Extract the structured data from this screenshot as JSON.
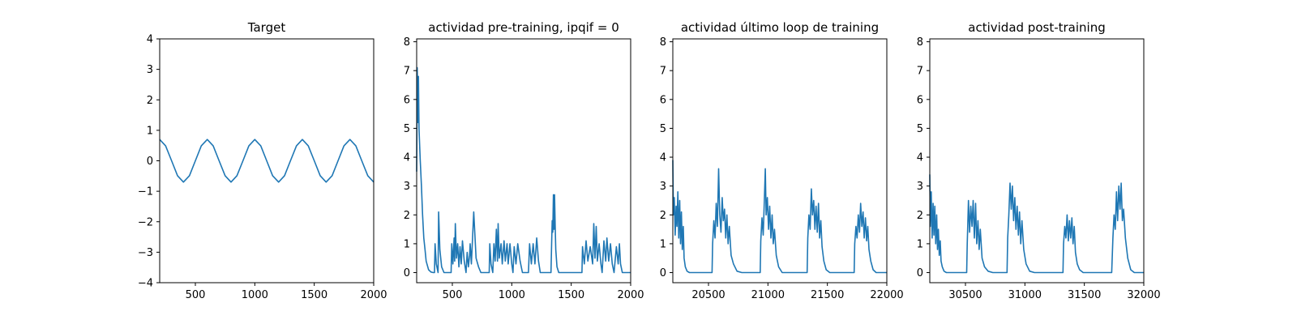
{
  "series_color": "#1f77b4",
  "chart_data": [
    {
      "type": "line",
      "title": "Target",
      "xlabel": "",
      "ylabel": "",
      "xlim": [
        200,
        2000
      ],
      "ylim": [
        -4,
        4
      ],
      "xticks": [
        500,
        1000,
        1500,
        2000
      ],
      "yticks": [
        -4,
        -3,
        -2,
        -1,
        0,
        1,
        2,
        3,
        4
      ],
      "xtick_labels": [
        "500",
        "1000",
        "1500",
        "2000"
      ],
      "ytick_labels": [
        "−4",
        "−3",
        "−2",
        "−1",
        "0",
        "1",
        "2",
        "3",
        "4"
      ],
      "grid": false,
      "x": [
        200,
        250,
        300,
        350,
        400,
        450,
        500,
        550,
        600,
        650,
        700,
        750,
        800,
        850,
        900,
        950,
        1000,
        1050,
        1100,
        1150,
        1200,
        1250,
        1300,
        1350,
        1400,
        1450,
        1500,
        1550,
        1600,
        1650,
        1700,
        1750,
        1800,
        1850,
        1900,
        1950,
        2000
      ],
      "y": [
        0.7,
        0.49,
        0.0,
        -0.49,
        -0.7,
        -0.49,
        0.0,
        0.49,
        0.7,
        0.49,
        0.0,
        -0.49,
        -0.7,
        -0.49,
        0.0,
        0.49,
        0.7,
        0.49,
        0.0,
        -0.49,
        -0.7,
        -0.49,
        0.0,
        0.49,
        0.7,
        0.49,
        0.0,
        -0.49,
        -0.7,
        -0.49,
        0.0,
        0.49,
        0.7,
        0.49,
        0.0,
        -0.49,
        -0.7
      ]
    },
    {
      "type": "line",
      "title": "actividad pre-training, ipqif = 0",
      "xlabel": "",
      "ylabel": "",
      "xlim": [
        200,
        2000
      ],
      "ylim": [
        -0.35,
        8.1
      ],
      "xticks": [
        500,
        1000,
        1500,
        2000
      ],
      "yticks": [
        0,
        1,
        2,
        3,
        4,
        5,
        6,
        7,
        8
      ],
      "xtick_labels": [
        "500",
        "1000",
        "1500",
        "2000"
      ],
      "ytick_labels": [
        "0",
        "1",
        "2",
        "3",
        "4",
        "5",
        "6",
        "7",
        "8"
      ],
      "grid": false,
      "x": [
        200,
        205,
        210,
        215,
        220,
        225,
        230,
        240,
        250,
        260,
        270,
        280,
        300,
        320,
        340,
        350,
        355,
        365,
        380,
        385,
        395,
        410,
        430,
        450,
        470,
        480,
        490,
        495,
        505,
        515,
        520,
        525,
        535,
        545,
        555,
        565,
        575,
        585,
        600,
        615,
        625,
        635,
        645,
        650,
        660,
        680,
        700,
        720,
        740,
        760,
        790,
        810,
        815,
        825,
        840,
        850,
        860,
        870,
        880,
        885,
        895,
        910,
        920,
        935,
        945,
        960,
        970,
        985,
        1000,
        1010,
        1020,
        1035,
        1050,
        1070,
        1090,
        1110,
        1130,
        1140,
        1150,
        1165,
        1180,
        1195,
        1210,
        1225,
        1240,
        1255,
        1270,
        1290,
        1310,
        1330,
        1335,
        1340,
        1345,
        1350,
        1355,
        1360,
        1365,
        1370,
        1380,
        1395,
        1420,
        1450,
        1480,
        1510,
        1540,
        1570,
        1590,
        1595,
        1610,
        1625,
        1640,
        1660,
        1680,
        1690,
        1700,
        1710,
        1720,
        1735,
        1750,
        1760,
        1775,
        1790,
        1800,
        1815,
        1830,
        1845,
        1860,
        1880,
        1895,
        1905,
        1915,
        1930,
        1950,
        1970,
        1990,
        2000
      ],
      "y": [
        3.5,
        7.1,
        5.2,
        6.8,
        5.0,
        4.4,
        3.9,
        3.0,
        2.0,
        1.2,
        0.8,
        0.4,
        0.1,
        0.02,
        0.0,
        0.0,
        1.0,
        0.3,
        0.0,
        2.1,
        0.8,
        0.2,
        0.0,
        0.0,
        0.0,
        0.0,
        0.0,
        1.0,
        0.3,
        1.2,
        0.4,
        1.7,
        0.5,
        1.0,
        0.2,
        0.9,
        0.3,
        1.1,
        0.4,
        0.0,
        0.7,
        0.2,
        0.6,
        1.0,
        0.3,
        2.1,
        0.5,
        0.2,
        0.0,
        0.0,
        0.0,
        0.0,
        1.0,
        0.3,
        0.0,
        1.0,
        0.4,
        1.5,
        0.4,
        1.7,
        0.5,
        1.0,
        0.3,
        1.1,
        0.4,
        1.0,
        0.3,
        1.0,
        0.3,
        0.0,
        0.9,
        0.3,
        1.0,
        0.4,
        0.0,
        0.0,
        0.0,
        0.0,
        1.0,
        0.3,
        1.0,
        0.3,
        1.2,
        0.4,
        0.0,
        0.0,
        0.0,
        0.0,
        0.0,
        0.0,
        1.0,
        1.8,
        1.4,
        2.7,
        1.5,
        2.7,
        1.6,
        0.8,
        0.2,
        0.0,
        0.0,
        0.0,
        0.0,
        0.0,
        0.0,
        0.0,
        0.0,
        0.9,
        0.3,
        1.1,
        0.4,
        0.9,
        0.3,
        1.7,
        0.5,
        1.6,
        0.4,
        1.0,
        0.3,
        0.0,
        1.1,
        0.4,
        1.2,
        0.4,
        1.0,
        0.3,
        0.0,
        0.9,
        0.3,
        1.0,
        0.3,
        0.0,
        0.0,
        0.0,
        0.0,
        0.0
      ]
    },
    {
      "type": "line",
      "title": "actividad último loop de training",
      "xlabel": "",
      "ylabel": "",
      "xlim": [
        20200,
        22000
      ],
      "ylim": [
        -0.35,
        8.1
      ],
      "xticks": [
        20500,
        21000,
        21500,
        22000
      ],
      "yticks": [
        0,
        1,
        2,
        3,
        4,
        5,
        6,
        7,
        8
      ],
      "xtick_labels": [
        "20500",
        "21000",
        "21500",
        "22000"
      ],
      "ytick_labels": [
        "0",
        "1",
        "2",
        "3",
        "4",
        "5",
        "6",
        "7",
        "8"
      ],
      "grid": false,
      "x": [
        20200,
        20205,
        20212,
        20220,
        20228,
        20235,
        20242,
        20250,
        20258,
        20265,
        20272,
        20280,
        20288,
        20295,
        20305,
        20320,
        20340,
        20360,
        20400,
        20450,
        20500,
        20530,
        20535,
        20545,
        20555,
        20565,
        20575,
        20585,
        20595,
        20605,
        20615,
        20625,
        20635,
        20645,
        20655,
        20665,
        20675,
        20690,
        20710,
        20740,
        20780,
        20820,
        20860,
        20900,
        20935,
        20940,
        20950,
        20960,
        20970,
        20978,
        20985,
        20995,
        21005,
        21015,
        21025,
        21035,
        21045,
        21055,
        21070,
        21090,
        21120,
        21160,
        21200,
        21240,
        21280,
        21330,
        21335,
        21345,
        21355,
        21365,
        21375,
        21385,
        21395,
        21405,
        21415,
        21425,
        21435,
        21445,
        21455,
        21470,
        21490,
        21520,
        21560,
        21600,
        21640,
        21680,
        21725,
        21730,
        21740,
        21750,
        21760,
        21770,
        21780,
        21790,
        21800,
        21810,
        21820,
        21830,
        21840,
        21850,
        21865,
        21885,
        21910,
        21950,
        22000
      ],
      "y": [
        3.9,
        2.0,
        2.6,
        1.3,
        2.3,
        1.6,
        2.8,
        1.2,
        2.5,
        1.0,
        2.1,
        0.8,
        1.6,
        0.5,
        0.2,
        0.05,
        0.0,
        0.0,
        0.0,
        0.0,
        0.0,
        0.0,
        1.0,
        1.8,
        1.2,
        2.4,
        1.6,
        3.6,
        2.0,
        1.4,
        2.6,
        1.8,
        2.2,
        1.2,
        2.0,
        1.0,
        1.6,
        0.6,
        0.3,
        0.05,
        0.0,
        0.0,
        0.0,
        0.0,
        0.0,
        1.1,
        1.9,
        1.3,
        2.5,
        3.6,
        2.0,
        2.6,
        1.5,
        2.3,
        1.2,
        2.0,
        1.0,
        1.5,
        0.6,
        0.2,
        0.0,
        0.0,
        0.0,
        0.0,
        0.0,
        0.0,
        1.2,
        2.0,
        1.5,
        2.9,
        2.0,
        2.5,
        1.5,
        2.3,
        1.4,
        2.4,
        1.2,
        1.8,
        0.9,
        0.4,
        0.1,
        0.0,
        0.0,
        0.0,
        0.0,
        0.0,
        0.0,
        1.0,
        1.6,
        1.2,
        2.0,
        1.4,
        2.4,
        1.6,
        2.1,
        1.2,
        1.9,
        1.1,
        1.6,
        0.8,
        0.4,
        0.1,
        0.0,
        0.0,
        0.0
      ]
    },
    {
      "type": "line",
      "title": "actividad post-training",
      "xlabel": "",
      "ylabel": "",
      "xlim": [
        30200,
        32000
      ],
      "ylim": [
        -0.35,
        8.1
      ],
      "xticks": [
        30500,
        31000,
        31500,
        32000
      ],
      "yticks": [
        0,
        1,
        2,
        3,
        4,
        5,
        6,
        7,
        8
      ],
      "xtick_labels": [
        "30500",
        "31000",
        "31500",
        "32000"
      ],
      "ytick_labels": [
        "0",
        "1",
        "2",
        "3",
        "4",
        "5",
        "6",
        "7",
        "8"
      ],
      "grid": false,
      "x": [
        30200,
        30205,
        30212,
        30220,
        30228,
        30235,
        30242,
        30250,
        30258,
        30265,
        30272,
        30280,
        30288,
        30295,
        30305,
        30320,
        30340,
        30380,
        30420,
        30460,
        30510,
        30515,
        30525,
        30535,
        30545,
        30555,
        30565,
        30575,
        30585,
        30595,
        30605,
        30615,
        30625,
        30640,
        30660,
        30690,
        30730,
        30770,
        30820,
        30850,
        30855,
        30865,
        30875,
        30885,
        30895,
        30905,
        30915,
        30925,
        30935,
        30945,
        30955,
        30965,
        30975,
        30990,
        31010,
        31040,
        31080,
        31120,
        31160,
        31200,
        31245,
        31320,
        31325,
        31335,
        31345,
        31355,
        31365,
        31375,
        31385,
        31395,
        31405,
        31415,
        31425,
        31440,
        31460,
        31490,
        31530,
        31570,
        31610,
        31650,
        31690,
        31730,
        31740,
        31750,
        31760,
        31770,
        31780,
        31790,
        31800,
        31810,
        31820,
        31830,
        31845,
        31865,
        31890,
        31920,
        31960,
        32000
      ],
      "y": [
        3.4,
        1.6,
        2.8,
        1.2,
        2.4,
        1.3,
        2.3,
        1.0,
        2.0,
        0.8,
        1.5,
        0.6,
        1.1,
        0.4,
        0.2,
        0.05,
        0.0,
        0.0,
        0.0,
        0.0,
        0.0,
        1.0,
        2.5,
        1.4,
        2.3,
        1.6,
        2.5,
        1.2,
        2.4,
        1.0,
        1.8,
        0.8,
        1.5,
        0.5,
        0.2,
        0.05,
        0.0,
        0.0,
        0.0,
        0.0,
        1.2,
        2.0,
        3.1,
        2.2,
        3.0,
        1.8,
        2.6,
        1.5,
        2.3,
        1.3,
        2.1,
        1.0,
        1.8,
        0.8,
        0.3,
        0.05,
        0.0,
        0.0,
        0.0,
        0.0,
        0.0,
        0.0,
        1.0,
        1.6,
        1.2,
        2.0,
        1.1,
        1.8,
        1.2,
        1.9,
        1.0,
        1.6,
        0.7,
        0.3,
        0.1,
        0.0,
        0.0,
        0.0,
        0.0,
        0.0,
        0.0,
        0.0,
        1.2,
        2.0,
        1.5,
        2.8,
        1.8,
        3.0,
        2.2,
        3.1,
        1.8,
        2.2,
        1.2,
        0.5,
        0.1,
        0.0,
        0.0,
        0.0
      ]
    }
  ]
}
